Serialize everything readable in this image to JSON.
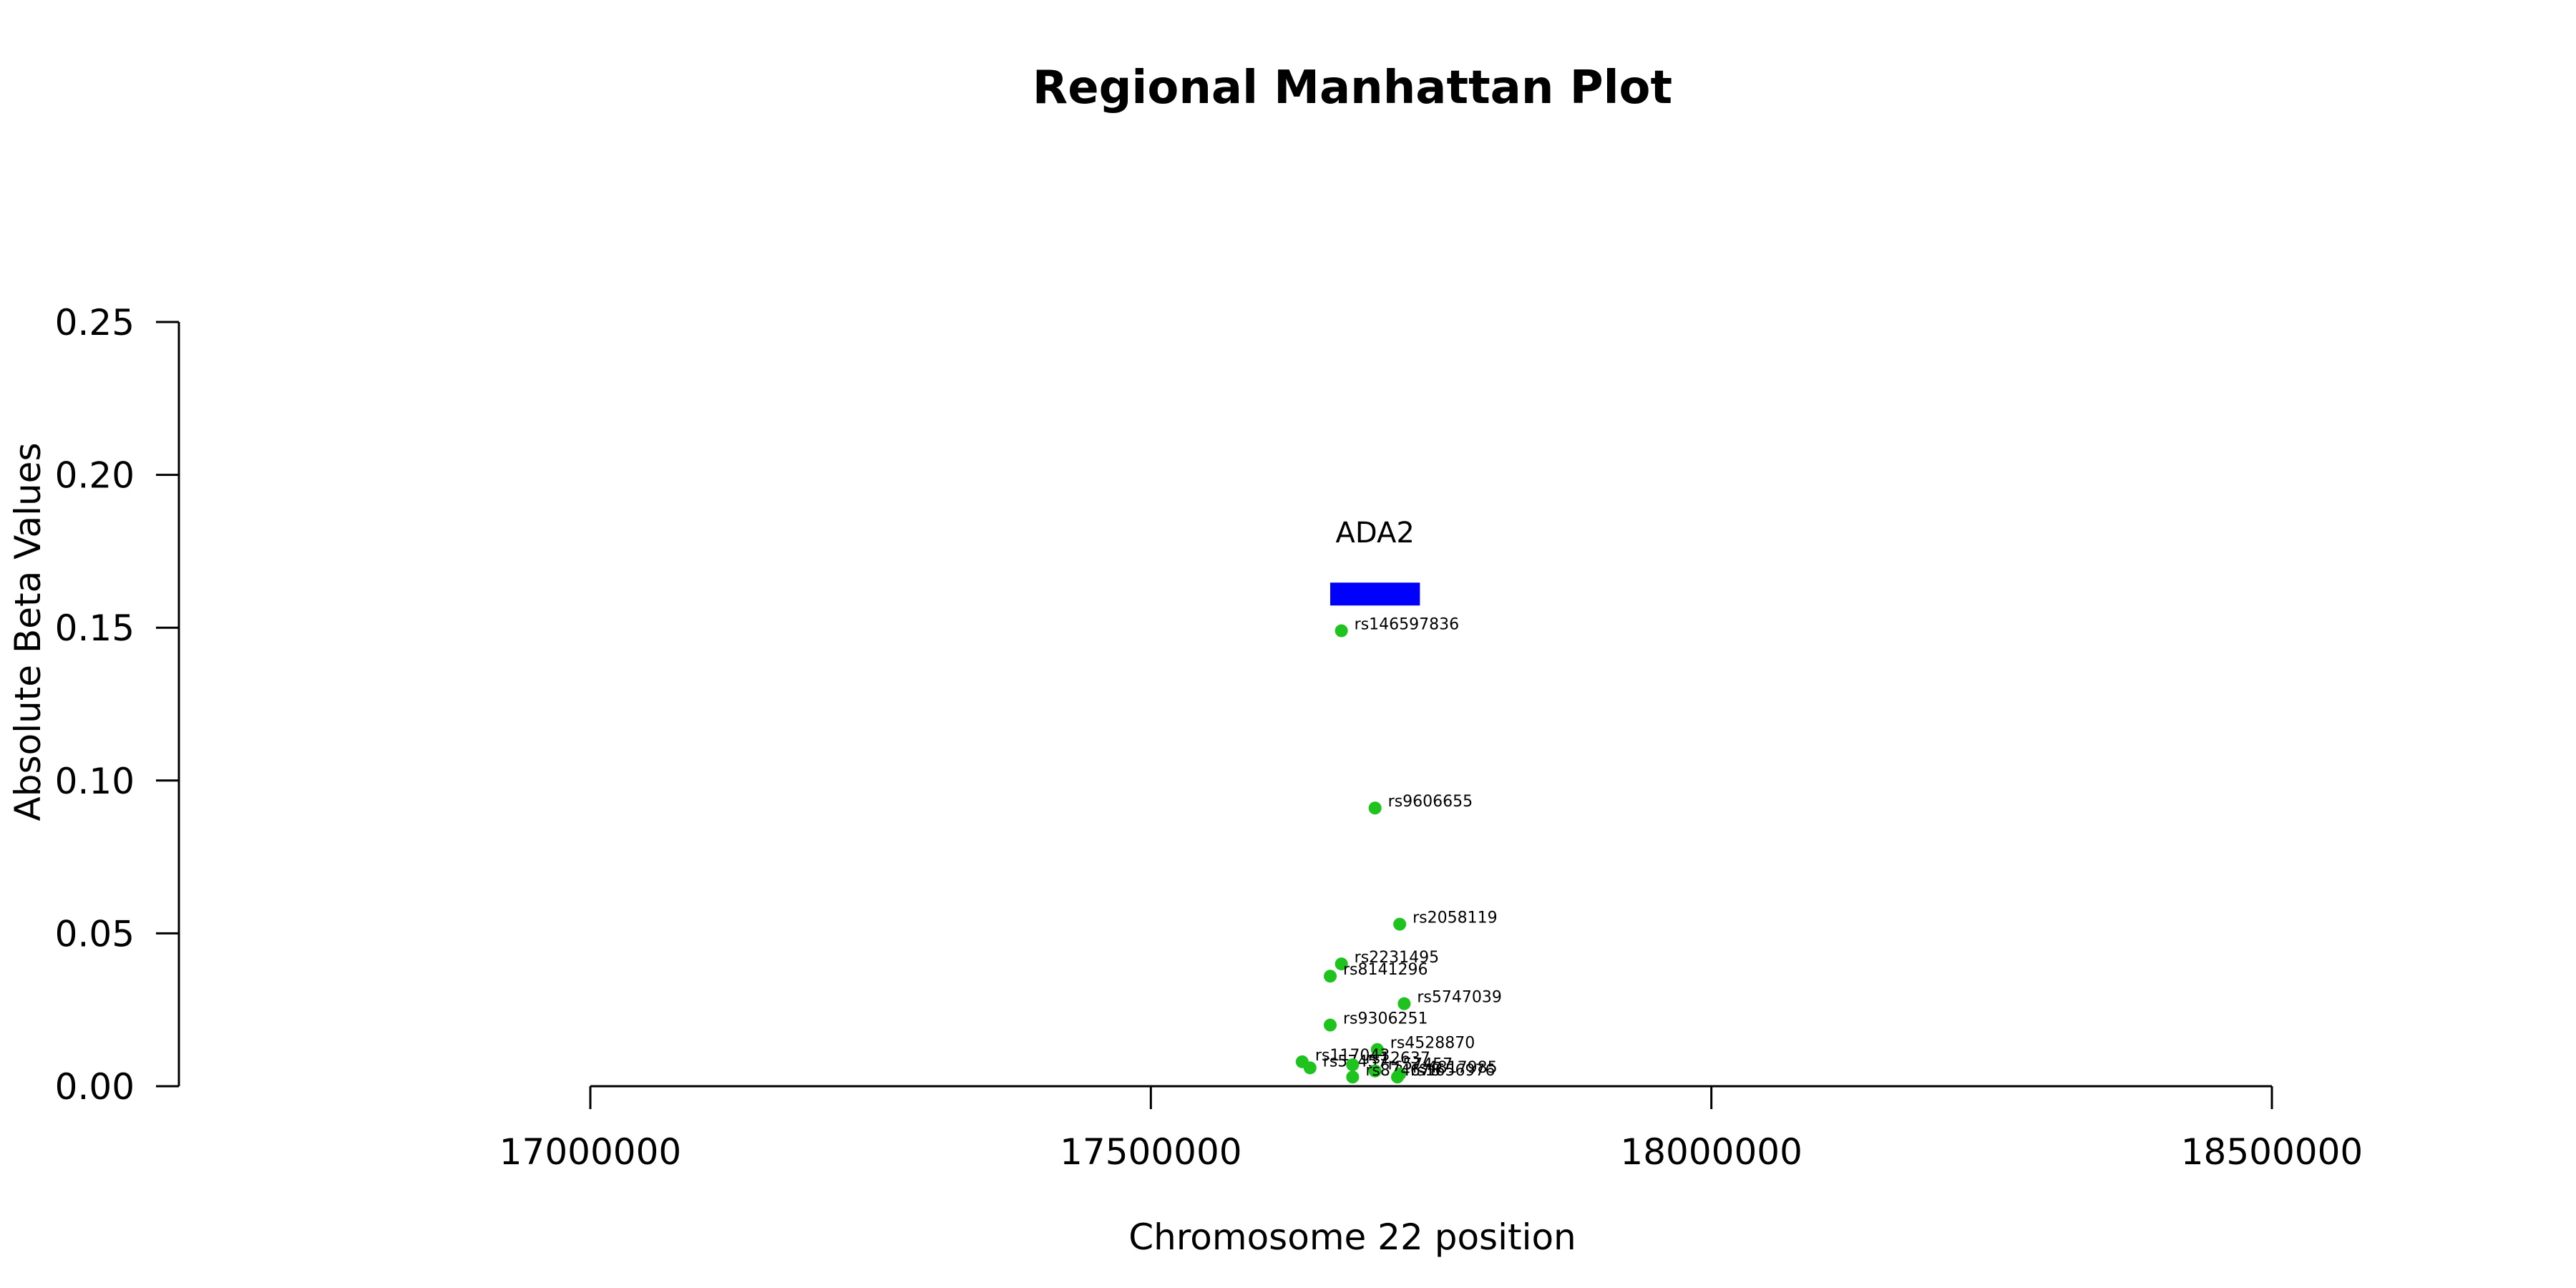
{
  "chart_data": {
    "type": "scatter",
    "title": "Regional Manhattan Plot",
    "xlabel": "Chromosome 22 position",
    "ylabel": "Absolute Beta Values",
    "xlim": [
      17000000,
      18500000
    ],
    "ylim": [
      0,
      0.25
    ],
    "xticks": [
      "17000000",
      "17500000",
      "18000000",
      "18500000"
    ],
    "yticks": [
      "0.00",
      "0.05",
      "0.10",
      "0.15",
      "0.20",
      "0.25"
    ],
    "grid": false,
    "point_color": "#1ec31e",
    "gene": {
      "name": "ADA2",
      "start": 17660000,
      "end": 17740000,
      "y": 0.161,
      "color": "#0000ff"
    },
    "points": [
      {
        "label": "rs146597836",
        "x": 17670000,
        "y": 0.149
      },
      {
        "label": "rs9606655",
        "x": 17700000,
        "y": 0.091
      },
      {
        "label": "rs2058119",
        "x": 17722000,
        "y": 0.053
      },
      {
        "label": "rs2231495",
        "x": 17670000,
        "y": 0.04
      },
      {
        "label": "rs8141296",
        "x": 17660000,
        "y": 0.036
      },
      {
        "label": "rs5747039",
        "x": 17726000,
        "y": 0.027
      },
      {
        "label": "rs9306251",
        "x": 17660000,
        "y": 0.02
      },
      {
        "label": "rs4528870",
        "x": 17702000,
        "y": 0.012
      },
      {
        "label": "rs117043",
        "x": 17635000,
        "y": 0.008
      },
      {
        "label": "rs57457",
        "x": 17642000,
        "y": 0.006
      },
      {
        "label": "rs12637",
        "x": 17680000,
        "y": 0.007
      },
      {
        "label": "rs57457",
        "x": 17700000,
        "y": 0.005
      },
      {
        "label": "rs4817985",
        "x": 17722000,
        "y": 0.004
      },
      {
        "label": "rs874678",
        "x": 17680000,
        "y": 0.003
      },
      {
        "label": "rs1656976",
        "x": 17720000,
        "y": 0.003
      }
    ]
  }
}
